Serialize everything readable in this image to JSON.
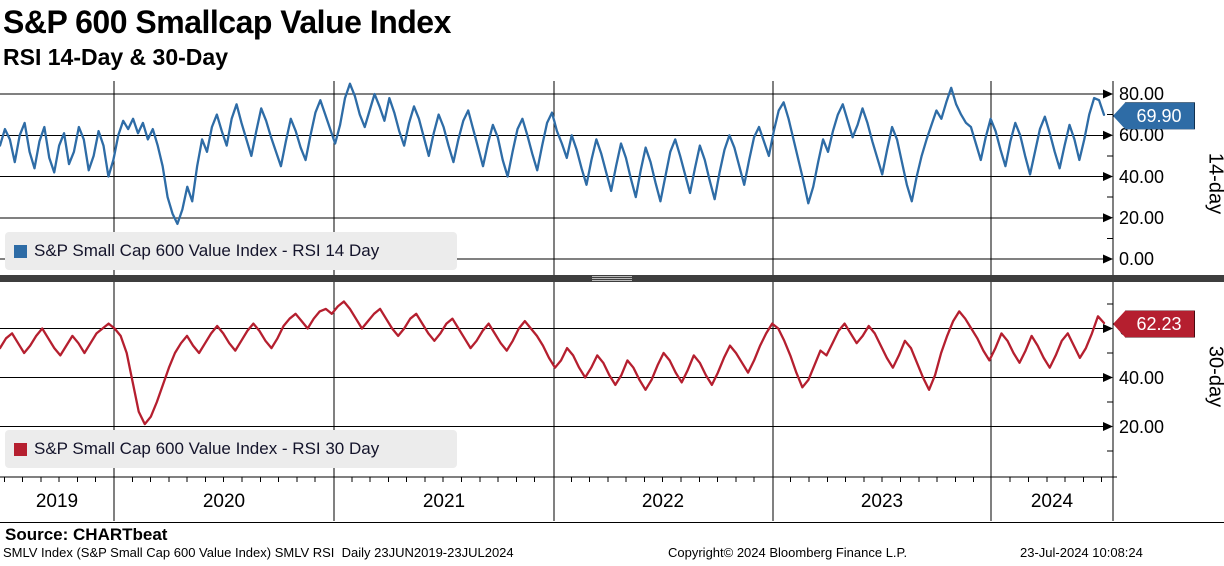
{
  "header": {
    "title": "S&P 600 Smallcap Value Index",
    "subtitle": "RSI 14-Day & 30-Day"
  },
  "panels": [
    {
      "legend": "S&P Small Cap 600 Value Index - RSI 14 Day",
      "axis_label": "14-day",
      "last_value": "69.90",
      "color": "#2e6ca6",
      "badge_border": "#11304f",
      "tick_labels": [
        "80.00",
        "60.00",
        "40.00",
        "20.00",
        "0.00"
      ]
    },
    {
      "legend": "S&P Small Cap 600 Value Index - RSI 30 Day",
      "axis_label": "30-day",
      "last_value": "62.23",
      "color": "#b51f2f",
      "badge_border": "#47090f",
      "tick_labels": [
        "60.00",
        "40.00",
        "20.00"
      ]
    }
  ],
  "x_axis": {
    "years": [
      "2019",
      "2020",
      "2021",
      "2022",
      "2023",
      "2024"
    ]
  },
  "footer": {
    "source": "Source: CHARTbeat",
    "description": "SMLV Index (S&P Small Cap 600 Value Index) SMLV RSI  Daily 23JUN2019-23JUL2024",
    "copyright": "Copyright© 2024 Bloomberg Finance L.P.",
    "timestamp": "23-Jul-2024 10:08:24"
  },
  "chart_data": [
    {
      "type": "line",
      "name": "S&P Small Cap 600 Value Index - RSI 14 Day",
      "color": "#2e6ca6",
      "x_start": "23JUN2019",
      "x_end": "23JUL2024",
      "xlabel_years": [
        "2019",
        "2020",
        "2021",
        "2022",
        "2023",
        "2024"
      ],
      "ylim": [
        0,
        88
      ],
      "y_ticks": [
        80,
        60,
        40,
        20,
        0
      ],
      "grid": true,
      "last_value": 69.9,
      "values": [
        55,
        63,
        58,
        47,
        60,
        66,
        52,
        44,
        57,
        64,
        49,
        42,
        55,
        61,
        46,
        52,
        64,
        58,
        43,
        50,
        62,
        55,
        40,
        48,
        60,
        67,
        63,
        68,
        61,
        66,
        58,
        63,
        55,
        45,
        30,
        22,
        17,
        24,
        35,
        28,
        45,
        58,
        52,
        64,
        70,
        62,
        55,
        68,
        75,
        66,
        58,
        50,
        62,
        73,
        67,
        59,
        52,
        45,
        57,
        68,
        62,
        54,
        48,
        60,
        71,
        77,
        70,
        63,
        56,
        65,
        78,
        85,
        79,
        70,
        64,
        72,
        80,
        74,
        67,
        78,
        71,
        62,
        55,
        66,
        74,
        68,
        59,
        50,
        61,
        70,
        64,
        55,
        47,
        58,
        67,
        72,
        63,
        54,
        45,
        56,
        65,
        59,
        48,
        40,
        52,
        63,
        68,
        60,
        51,
        43,
        55,
        66,
        71,
        62,
        56,
        49,
        60,
        53,
        44,
        36,
        48,
        58,
        51,
        42,
        33,
        45,
        56,
        49,
        39,
        30,
        43,
        54,
        47,
        37,
        28,
        40,
        52,
        58,
        50,
        41,
        32,
        44,
        55,
        48,
        38,
        29,
        42,
        53,
        60,
        54,
        45,
        36,
        48,
        59,
        64,
        57,
        50,
        62,
        72,
        76,
        68,
        58,
        48,
        38,
        27,
        35,
        47,
        58,
        52,
        62,
        70,
        75,
        67,
        59,
        65,
        73,
        66,
        57,
        49,
        41,
        53,
        64,
        58,
        47,
        36,
        28,
        40,
        50,
        58,
        65,
        72,
        68,
        76,
        83,
        75,
        70,
        66,
        64,
        56,
        48,
        59,
        68,
        62,
        53,
        45,
        57,
        66,
        60,
        50,
        41,
        52,
        63,
        69,
        61,
        52,
        44,
        55,
        65,
        58,
        48,
        58,
        70,
        78,
        77,
        69.9
      ]
    },
    {
      "type": "line",
      "name": "S&P Small Cap 600 Value Index - RSI 30 Day",
      "color": "#b51f2f",
      "x_start": "23JUN2019",
      "x_end": "23JUL2024",
      "xlabel_years": [
        "2019",
        "2020",
        "2021",
        "2022",
        "2023",
        "2024"
      ],
      "ylim": [
        0,
        80
      ],
      "y_ticks": [
        60,
        40,
        20
      ],
      "grid": true,
      "last_value": 62.23,
      "values": [
        52,
        56,
        58,
        54,
        50,
        53,
        57,
        60,
        56,
        52,
        49,
        53,
        57,
        54,
        50,
        54,
        58,
        60,
        62,
        60,
        57,
        50,
        38,
        26,
        21,
        24,
        30,
        37,
        44,
        50,
        54,
        57,
        53,
        50,
        54,
        58,
        61,
        58,
        54,
        51,
        55,
        59,
        62,
        59,
        55,
        52,
        56,
        61,
        64,
        66,
        63,
        60,
        64,
        67,
        68,
        66,
        69,
        71,
        68,
        64,
        60,
        63,
        66,
        68,
        64,
        60,
        57,
        60,
        64,
        66,
        62,
        58,
        55,
        58,
        62,
        64,
        60,
        56,
        52,
        55,
        59,
        62,
        58,
        54,
        51,
        55,
        60,
        63,
        60,
        57,
        53,
        48,
        44,
        47,
        52,
        49,
        44,
        40,
        44,
        49,
        46,
        41,
        37,
        41,
        47,
        44,
        39,
        35,
        39,
        45,
        50,
        47,
        42,
        38,
        43,
        49,
        46,
        41,
        37,
        42,
        48,
        53,
        50,
        46,
        42,
        47,
        53,
        58,
        62,
        60,
        55,
        49,
        42,
        36,
        39,
        45,
        51,
        49,
        54,
        59,
        62,
        58,
        54,
        57,
        61,
        58,
        53,
        48,
        44,
        49,
        55,
        52,
        46,
        40,
        35,
        41,
        50,
        57,
        63,
        67,
        64,
        60,
        56,
        51,
        47,
        52,
        58,
        55,
        50,
        46,
        51,
        57,
        53,
        48,
        44,
        49,
        55,
        58,
        53,
        48,
        52,
        58,
        65,
        62.23
      ]
    }
  ]
}
